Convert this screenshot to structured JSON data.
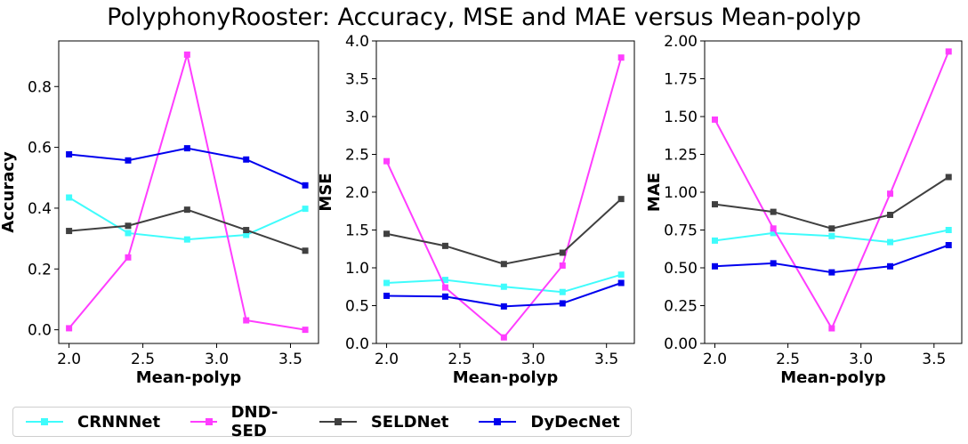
{
  "title": "PolyphonyRooster: Accuracy, MSE and MAE versus Mean-polyp",
  "chart_data": [
    {
      "type": "line",
      "xlabel": "Mean-polyp",
      "ylabel": "Accuracy",
      "xlim": [
        1.93,
        3.69
      ],
      "ylim": [
        -0.045,
        0.95
      ],
      "xticks": [
        "2.0",
        "2.5",
        "3.0",
        "3.5"
      ],
      "yticks": [
        "0.0",
        "0.2",
        "0.4",
        "0.6",
        "0.8"
      ],
      "x": [
        2.0,
        2.4,
        2.8,
        3.2,
        3.6
      ],
      "series": [
        {
          "name": "CRNNNet",
          "color": "#3ffcfc",
          "values": [
            0.435,
            0.318,
            0.297,
            0.312,
            0.398
          ]
        },
        {
          "name": "DND-SED",
          "color": "#ff3dff",
          "values": [
            0.005,
            0.238,
            0.905,
            0.031,
            0.0
          ]
        },
        {
          "name": "SELDNet",
          "color": "#404040",
          "values": [
            0.325,
            0.342,
            0.395,
            0.328,
            0.26
          ]
        },
        {
          "name": "DyDecNet",
          "color": "#0000ee",
          "values": [
            0.577,
            0.557,
            0.597,
            0.56,
            0.475
          ]
        }
      ]
    },
    {
      "type": "line",
      "xlabel": "Mean-polyp",
      "ylabel": "MSE",
      "xlim": [
        1.93,
        3.69
      ],
      "ylim": [
        0.0,
        4.0
      ],
      "xticks": [
        "2.0",
        "2.5",
        "3.0",
        "3.5"
      ],
      "yticks": [
        "0.0",
        "0.5",
        "1.0",
        "1.5",
        "2.0",
        "2.5",
        "3.0",
        "3.5",
        "4.0"
      ],
      "x": [
        2.0,
        2.4,
        2.8,
        3.2,
        3.6
      ],
      "series": [
        {
          "name": "CRNNNet",
          "color": "#3ffcfc",
          "values": [
            0.8,
            0.84,
            0.75,
            0.68,
            0.91
          ]
        },
        {
          "name": "DND-SED",
          "color": "#ff3dff",
          "values": [
            2.41,
            0.74,
            0.08,
            1.03,
            3.78
          ]
        },
        {
          "name": "SELDNet",
          "color": "#404040",
          "values": [
            1.45,
            1.29,
            1.05,
            1.2,
            1.91
          ]
        },
        {
          "name": "DyDecNet",
          "color": "#0000ee",
          "values": [
            0.63,
            0.62,
            0.49,
            0.53,
            0.8
          ]
        }
      ]
    },
    {
      "type": "line",
      "xlabel": "Mean-polyp",
      "ylabel": "MAE",
      "xlim": [
        1.93,
        3.69
      ],
      "ylim": [
        0.0,
        2.0
      ],
      "xticks": [
        "2.0",
        "2.5",
        "3.0",
        "3.5"
      ],
      "yticks": [
        "0.00",
        "0.25",
        "0.50",
        "0.75",
        "1.00",
        "1.25",
        "1.50",
        "1.75",
        "2.00"
      ],
      "x": [
        2.0,
        2.4,
        2.8,
        3.2,
        3.6
      ],
      "series": [
        {
          "name": "CRNNNet",
          "color": "#3ffcfc",
          "values": [
            0.68,
            0.73,
            0.71,
            0.67,
            0.75
          ]
        },
        {
          "name": "DND-SED",
          "color": "#ff3dff",
          "values": [
            1.48,
            0.76,
            0.1,
            0.99,
            1.93
          ]
        },
        {
          "name": "SELDNet",
          "color": "#404040",
          "values": [
            0.92,
            0.87,
            0.76,
            0.85,
            1.1
          ]
        },
        {
          "name": "DyDecNet",
          "color": "#0000ee",
          "values": [
            0.51,
            0.53,
            0.47,
            0.51,
            0.65
          ]
        }
      ]
    }
  ],
  "legend": [
    {
      "label": "CRNNNet",
      "color": "#3ffcfc"
    },
    {
      "label": "DND-SED",
      "color": "#ff3dff"
    },
    {
      "label": "SELDNet",
      "color": "#404040"
    },
    {
      "label": "DyDecNet",
      "color": "#0000ee"
    }
  ]
}
